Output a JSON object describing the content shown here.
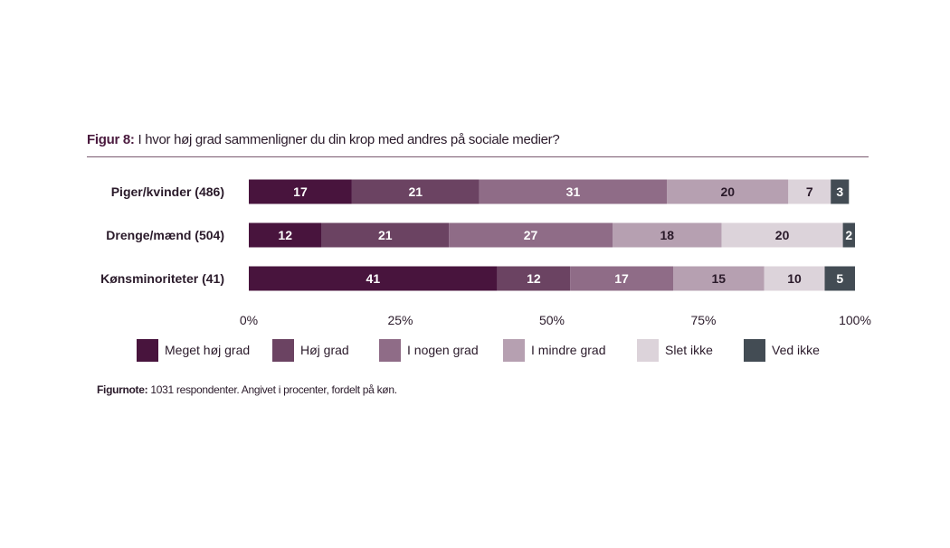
{
  "header": {
    "title_prefix": "Figur 8:",
    "title_text": "I hvor høj grad sammenligner du din krop med andres på sociale medier?"
  },
  "footer": {
    "note_prefix": "Figurnote:",
    "note_text": "1031 respondenter. Angivet i procenter, fordelt på køn."
  },
  "chart_data": {
    "type": "bar",
    "orientation": "horizontal",
    "stacked": true,
    "categories": [
      "Piger/kvinder (486)",
      "Drenge/mænd (504)",
      "Kønsminoriteter  (41)"
    ],
    "series": [
      {
        "name": "Meget høj grad",
        "color": "#48143d",
        "label_color": "#ffffff",
        "values": [
          17,
          12,
          41
        ]
      },
      {
        "name": "Høj grad",
        "color": "#6b4362",
        "label_color": "#ffffff",
        "values": [
          21,
          21,
          12
        ]
      },
      {
        "name": "I nogen grad",
        "color": "#8f6c87",
        "label_color": "#ffffff",
        "values": [
          31,
          27,
          17
        ]
      },
      {
        "name": "I mindre grad",
        "color": "#b6a0b1",
        "label_color": "#2a1a2a",
        "values": [
          20,
          18,
          15
        ]
      },
      {
        "name": "Slet ikke",
        "color": "#dcd3da",
        "label_color": "#2a1a2a",
        "values": [
          7,
          20,
          10
        ]
      },
      {
        "name": "Ved ikke",
        "color": "#434c54",
        "label_color": "#ffffff",
        "values": [
          3,
          2,
          5
        ]
      }
    ],
    "x_ticks": [
      0,
      25,
      50,
      75,
      100
    ],
    "x_tick_labels": [
      "0%",
      "25%",
      "50%",
      "75%",
      "100%"
    ],
    "xlim": [
      0,
      100
    ],
    "grid": false,
    "legend_position": "bottom"
  }
}
